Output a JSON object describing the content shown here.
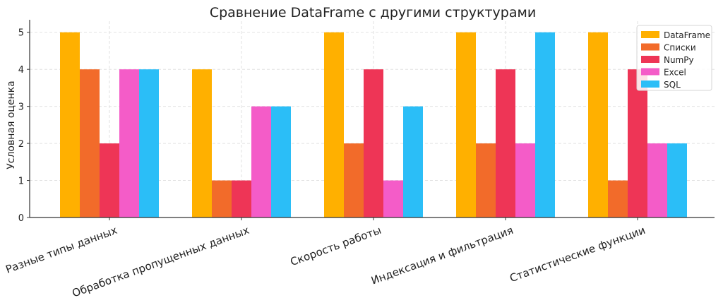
{
  "chart_data": {
    "type": "bar",
    "title": "Сравнение DataFrame с другими структурами",
    "xlabel": "",
    "ylabel": "Условная оценка",
    "ylim": [
      0,
      5.3
    ],
    "yticks": [
      0,
      1,
      2,
      3,
      4,
      5
    ],
    "grid": true,
    "legend_position": "top-right",
    "categories": [
      "Разные типы данных",
      "Обработка пропущенных данных",
      "Скорость работы",
      "Индексация и фильтрация",
      "Статистические функции"
    ],
    "series": [
      {
        "name": "DataFrame",
        "color": "#FFB000",
        "values": [
          5,
          4,
          5,
          5,
          5
        ]
      },
      {
        "name": "Списки",
        "color": "#F26B2A",
        "values": [
          4,
          1,
          2,
          2,
          1
        ]
      },
      {
        "name": "NumPy",
        "color": "#EE3556",
        "values": [
          2,
          1,
          4,
          4,
          4
        ]
      },
      {
        "name": "Excel",
        "color": "#F45CC8",
        "values": [
          4,
          3,
          1,
          2,
          2
        ]
      },
      {
        "name": "SQL",
        "color": "#2BBEF7",
        "values": [
          4,
          3,
          3,
          5,
          2
        ]
      }
    ]
  }
}
